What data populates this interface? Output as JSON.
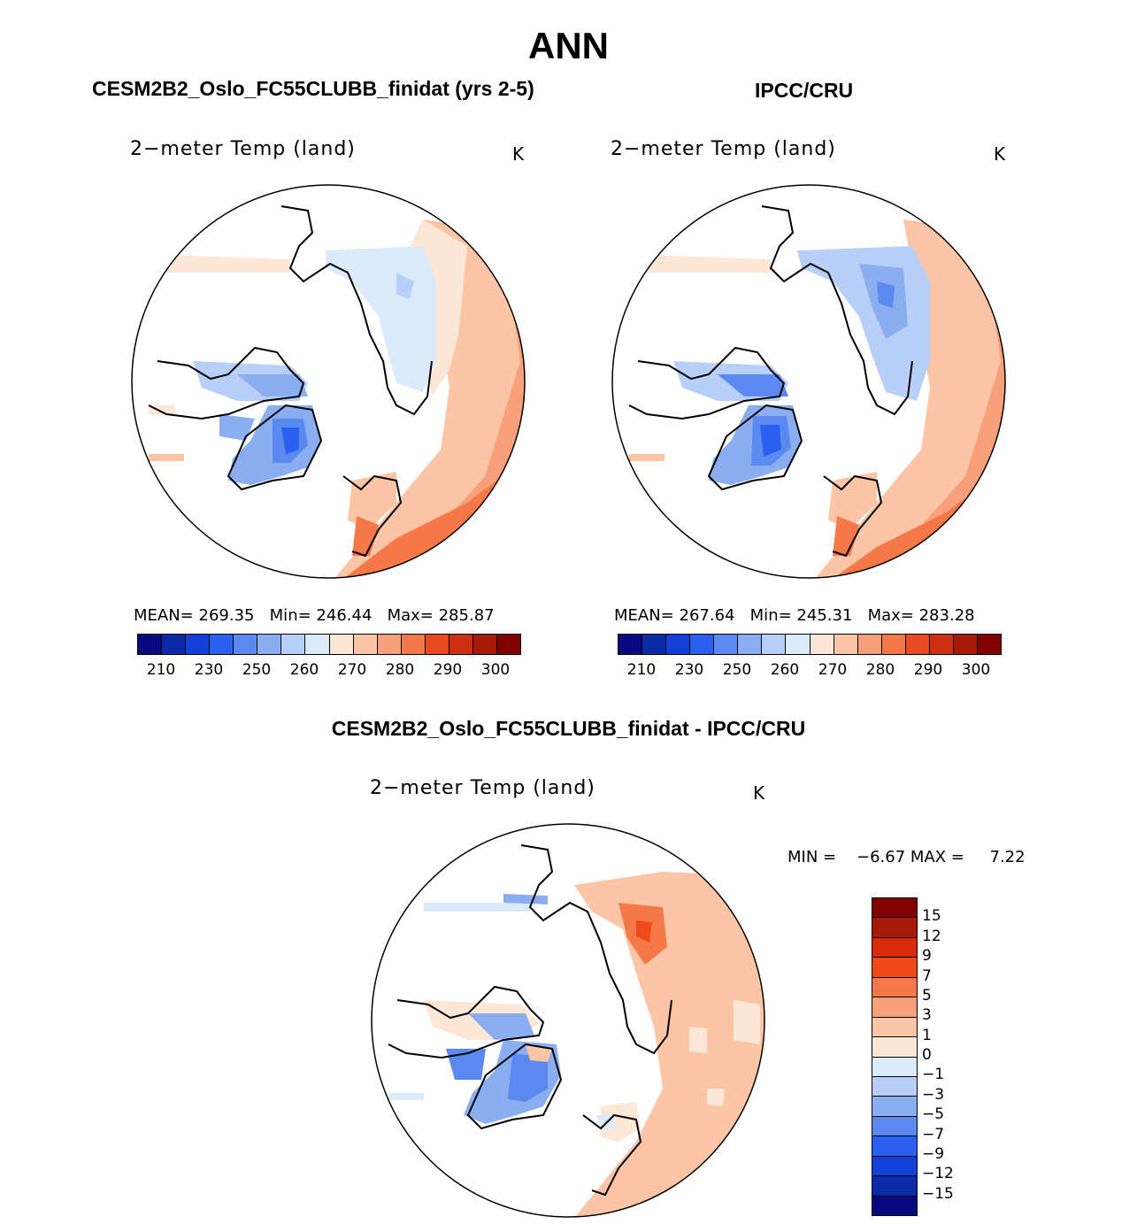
{
  "title": "ANN",
  "panels": [
    {
      "heading": "CESM2B2_Oslo_FC55CLUBB_finidat (yrs 2-5)",
      "variable": "2−meter Temp (land)",
      "units": "K",
      "stats": {
        "mean_label": "MEAN=",
        "mean": "269.35",
        "min_label": "Min=",
        "min": "246.44",
        "max_label": "Max=",
        "max": "285.87"
      }
    },
    {
      "heading": "IPCC/CRU",
      "variable": "2−meter Temp (land)",
      "units": "K",
      "stats": {
        "mean_label": "MEAN=",
        "mean": "267.64",
        "min_label": "Min=",
        "min": "245.31",
        "max_label": "Max=",
        "max": "283.28"
      }
    }
  ],
  "abs_colorbar": {
    "colors": [
      "#0a0a80",
      "#0a2aa8",
      "#1240d8",
      "#2a60f0",
      "#5a8af0",
      "#8aaef0",
      "#b8d0f8",
      "#dcebfb",
      "#fde8d8",
      "#fcc6a6",
      "#f8a07a",
      "#f57848",
      "#e84a22",
      "#cc3010",
      "#a81a08",
      "#800000"
    ],
    "ticks": [
      "210",
      "230",
      "250",
      "260",
      "270",
      "280",
      "290",
      "300"
    ]
  },
  "diff_panel": {
    "heading": "CESM2B2_Oslo_FC55CLUBB_finidat - IPCC/CRU",
    "variable": "2−meter Temp (land)",
    "units": "K",
    "stats": {
      "min_label": "MIN =",
      "min": "−6.67",
      "max_label": "MAX =",
      "max": "7.22"
    }
  },
  "diff_colorbar": {
    "colors": [
      "#800000",
      "#a81a08",
      "#d82a08",
      "#f04a18",
      "#f57848",
      "#f8a07a",
      "#fcc6a6",
      "#fde8d8",
      "#dcebfb",
      "#b8d0f8",
      "#8aaef0",
      "#5a8af0",
      "#2a60f0",
      "#1240d8",
      "#0a2aa8",
      "#0a0a80"
    ],
    "ticks": [
      "15",
      "12",
      "9",
      "7",
      "5",
      "3",
      "1",
      "0",
      "−1",
      "−3",
      "−5",
      "−7",
      "−9",
      "−12",
      "−15"
    ]
  }
}
